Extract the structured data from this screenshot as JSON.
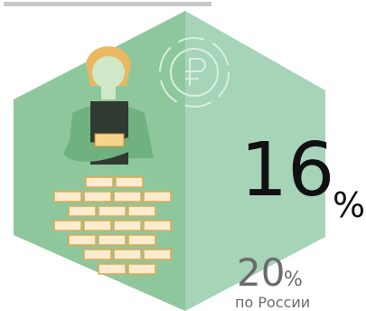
{
  "main_value": "16",
  "main_unit": "%",
  "compare_value": "20",
  "compare_unit": "%",
  "compare_label": "по России"
}
